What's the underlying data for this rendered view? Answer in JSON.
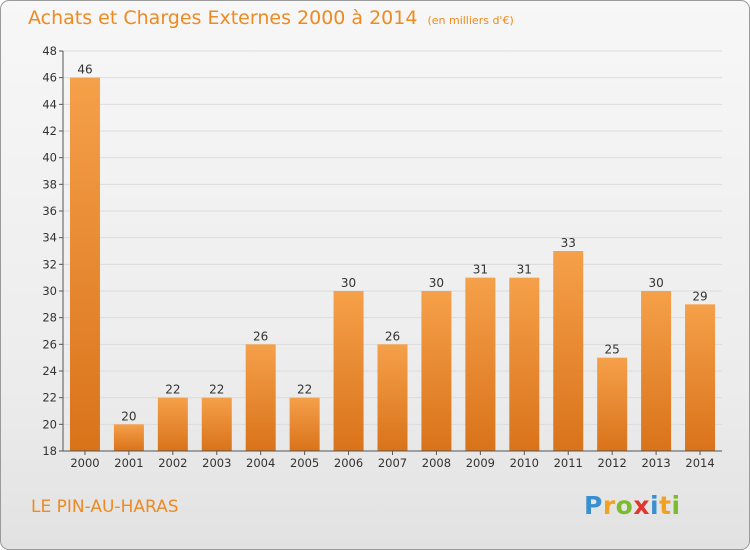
{
  "title": "Achats et Charges Externes 2000 à 2014",
  "subtitle": "(en milliers d'€)",
  "commune": "LE PIN-AU-HARAS",
  "logo": {
    "letters": [
      "P",
      "r",
      "o",
      "x",
      "i",
      "t",
      "i"
    ],
    "colors": [
      "#3a8fd0",
      "#f2a223",
      "#7bbb2c",
      "#e2352b",
      "#3a8fd0",
      "#f2a223",
      "#7bbb2c"
    ]
  },
  "colors": {
    "bar_top": "#f5a04a",
    "bar_bottom": "#d9731a",
    "title": "#ee8a22"
  },
  "chart_data": {
    "type": "bar",
    "categories": [
      "2000",
      "2001",
      "2002",
      "2003",
      "2004",
      "2005",
      "2006",
      "2007",
      "2008",
      "2009",
      "2010",
      "2011",
      "2012",
      "2013",
      "2014"
    ],
    "values": [
      46,
      20,
      22,
      22,
      26,
      22,
      30,
      26,
      30,
      31,
      31,
      33,
      25,
      30,
      29
    ],
    "title": "Achats et Charges Externes 2000 à 2014",
    "xlabel": "",
    "ylabel": "",
    "ylim": [
      18,
      48
    ],
    "yticks": [
      18,
      20,
      22,
      24,
      26,
      28,
      30,
      32,
      34,
      36,
      38,
      40,
      42,
      44,
      46,
      48
    ],
    "grid": true,
    "legend": "none"
  }
}
